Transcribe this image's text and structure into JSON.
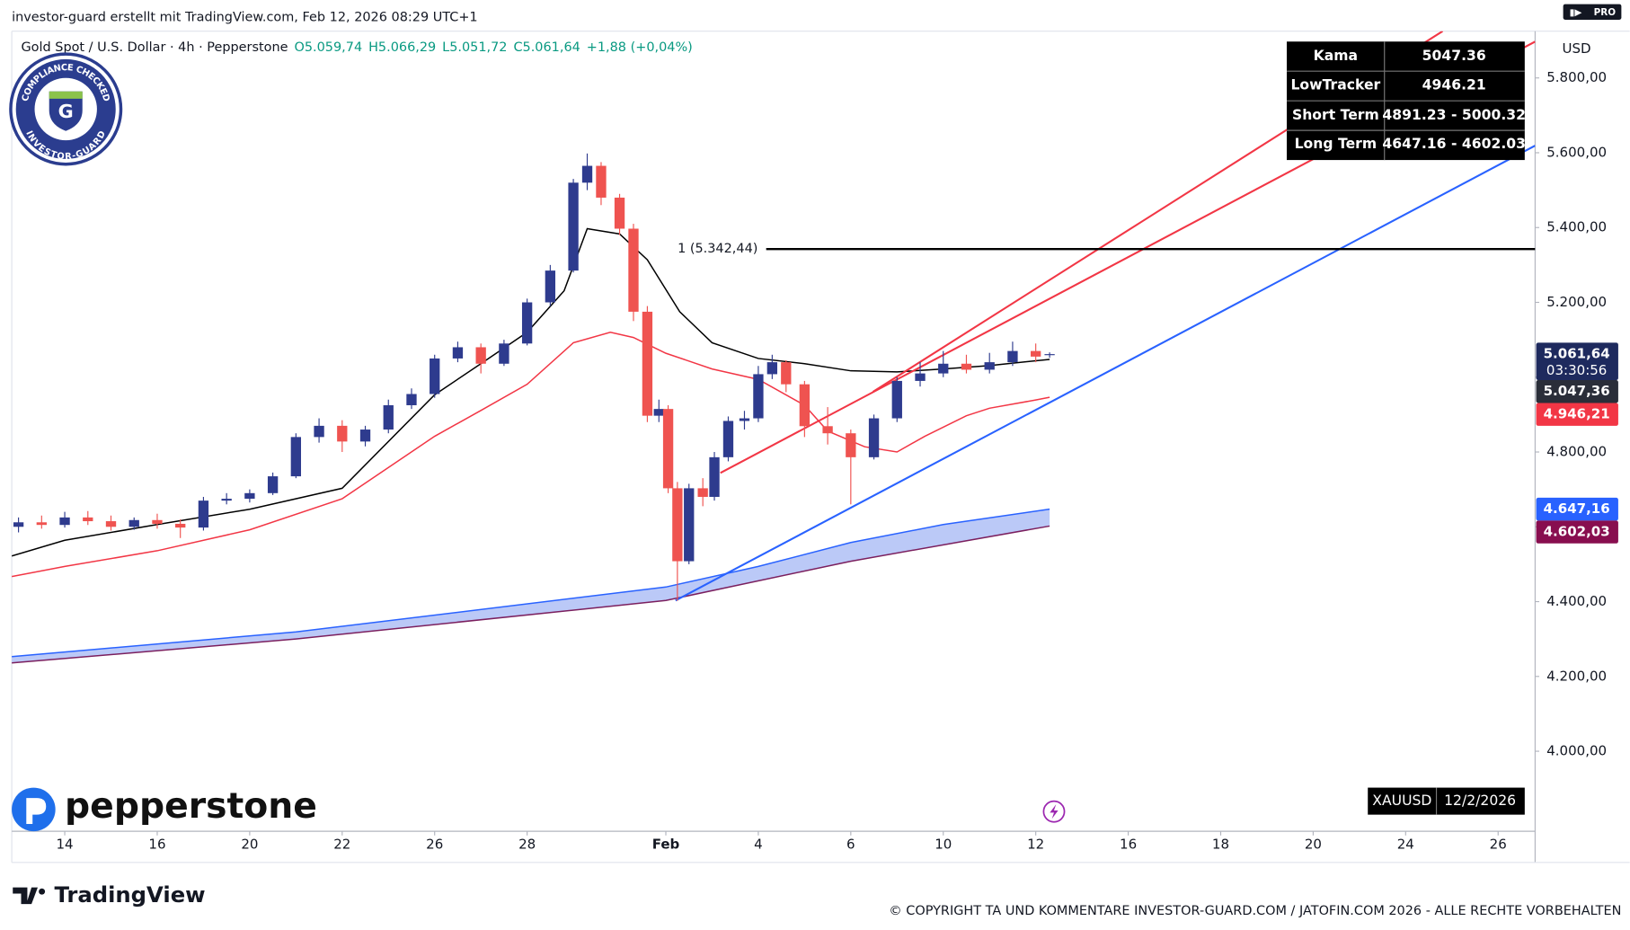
{
  "header": {
    "attribution": "investor-guard erstellt mit TradingView.com, Feb 12, 2026 08:29 UTC+1",
    "tv_badge": "PRO",
    "symbol": "Gold Spot / U.S. Dollar · 4h · Pepperstone",
    "ohlc": [
      "O5.059,74",
      "H5.066,29",
      "L5.051,72",
      "C5.061,64",
      "+1,88 (+0,04%)"
    ],
    "currency": "USD"
  },
  "badge": {
    "top": "COMPLIANCE CHECKED",
    "bottom": "INVESTOR-GUARD",
    "letter": "G"
  },
  "info_table": {
    "rows": [
      [
        "Kama",
        "5047.36"
      ],
      [
        "LowTracker",
        "4946.21"
      ],
      [
        "Short Term",
        "4891.23 - 5000.32"
      ],
      [
        "Long Term",
        "4647.16 - 4602.03"
      ]
    ]
  },
  "chart_data": {
    "type": "candlestick",
    "up_color": "#2e3b8e",
    "down_color": "#ef5350",
    "xlim": [
      -1.146,
      31.8
    ],
    "ylim": [
      3786,
      5925
    ],
    "grid": false,
    "xticks": [
      {
        "value": 0,
        "label": "14"
      },
      {
        "value": 2,
        "label": "16"
      },
      {
        "value": 4,
        "label": "20"
      },
      {
        "value": 6,
        "label": "22"
      },
      {
        "value": 8,
        "label": "26"
      },
      {
        "value": 10,
        "label": "28"
      },
      {
        "value": 13,
        "label": "Feb"
      },
      {
        "value": 15,
        "label": "4"
      },
      {
        "value": 17,
        "label": "6"
      },
      {
        "value": 19,
        "label": "10"
      },
      {
        "value": 21,
        "label": "12"
      },
      {
        "value": 23,
        "label": "16"
      },
      {
        "value": 25,
        "label": "18"
      },
      {
        "value": 27,
        "label": "20"
      },
      {
        "value": 29,
        "label": "24"
      },
      {
        "value": 31,
        "label": "26"
      }
    ],
    "yticks": [
      {
        "value": 4000,
        "label": "4.000,00"
      },
      {
        "value": 4200,
        "label": "4.200,00"
      },
      {
        "value": 4400,
        "label": "4.400,00"
      },
      {
        "value": 4600,
        "label": "4.600,00"
      },
      {
        "value": 4800,
        "label": "4.800,00"
      },
      {
        "value": 5000,
        "label": "5.000,00"
      },
      {
        "value": 5200,
        "label": "5.200,00"
      },
      {
        "value": 5400,
        "label": "5.400,00"
      },
      {
        "value": 5600,
        "label": "5.600,00"
      },
      {
        "value": 5800,
        "label": "5.800,00"
      }
    ],
    "candles": [
      {
        "x": -1,
        "open": 4600,
        "high": 4625,
        "low": 4585,
        "close": 4612
      },
      {
        "x": -0.5,
        "open": 4612,
        "high": 4630,
        "low": 4595,
        "close": 4605
      },
      {
        "x": 0,
        "open": 4605,
        "high": 4640,
        "low": 4598,
        "close": 4625
      },
      {
        "x": 0.5,
        "open": 4625,
        "high": 4642,
        "low": 4605,
        "close": 4615
      },
      {
        "x": 1,
        "open": 4615,
        "high": 4630,
        "low": 4590,
        "close": 4600
      },
      {
        "x": 1.5,
        "open": 4600,
        "high": 4625,
        "low": 4592,
        "close": 4618
      },
      {
        "x": 2,
        "open": 4618,
        "high": 4635,
        "low": 4595,
        "close": 4608
      },
      {
        "x": 2.5,
        "open": 4608,
        "high": 4620,
        "low": 4570,
        "close": 4598
      },
      {
        "x": 3,
        "open": 4598,
        "high": 4680,
        "low": 4590,
        "close": 4670
      },
      {
        "x": 3.5,
        "open": 4670,
        "high": 4690,
        "low": 4660,
        "close": 4675
      },
      {
        "x": 4,
        "open": 4675,
        "high": 4700,
        "low": 4665,
        "close": 4690
      },
      {
        "x": 4.5,
        "open": 4690,
        "high": 4745,
        "low": 4685,
        "close": 4735
      },
      {
        "x": 5,
        "open": 4735,
        "high": 4850,
        "low": 4730,
        "close": 4840
      },
      {
        "x": 5.5,
        "open": 4840,
        "high": 4890,
        "low": 4825,
        "close": 4870
      },
      {
        "x": 6,
        "open": 4870,
        "high": 4885,
        "low": 4800,
        "close": 4828
      },
      {
        "x": 6.5,
        "open": 4828,
        "high": 4870,
        "low": 4815,
        "close": 4860
      },
      {
        "x": 7,
        "open": 4860,
        "high": 4940,
        "low": 4850,
        "close": 4925
      },
      {
        "x": 7.5,
        "open": 4925,
        "high": 4970,
        "low": 4915,
        "close": 4955
      },
      {
        "x": 8,
        "open": 4955,
        "high": 5060,
        "low": 4945,
        "close": 5050
      },
      {
        "x": 8.5,
        "open": 5050,
        "high": 5095,
        "low": 5040,
        "close": 5080
      },
      {
        "x": 9,
        "open": 5080,
        "high": 5090,
        "low": 5010,
        "close": 5036
      },
      {
        "x": 9.5,
        "open": 5036,
        "high": 5100,
        "low": 5030,
        "close": 5090
      },
      {
        "x": 10,
        "open": 5090,
        "high": 5210,
        "low": 5085,
        "close": 5200
      },
      {
        "x": 10.5,
        "open": 5200,
        "high": 5300,
        "low": 5190,
        "close": 5285
      },
      {
        "x": 11,
        "open": 5285,
        "high": 5530,
        "low": 5280,
        "close": 5520
      },
      {
        "x": 11.3,
        "open": 5520,
        "high": 5598,
        "low": 5500,
        "close": 5565
      },
      {
        "x": 11.6,
        "open": 5565,
        "high": 5575,
        "low": 5460,
        "close": 5480
      },
      {
        "x": 12,
        "open": 5480,
        "high": 5490,
        "low": 5380,
        "close": 5397
      },
      {
        "x": 12.3,
        "open": 5397,
        "high": 5410,
        "low": 5150,
        "close": 5175
      },
      {
        "x": 12.6,
        "open": 5175,
        "high": 5190,
        "low": 4880,
        "close": 4897
      },
      {
        "x": 12.85,
        "open": 4897,
        "high": 4940,
        "low": 4880,
        "close": 4915
      },
      {
        "x": 13.05,
        "open": 4915,
        "high": 4925,
        "low": 4690,
        "close": 4703
      },
      {
        "x": 13.25,
        "open": 4703,
        "high": 4720,
        "low": 4402,
        "close": 4508
      },
      {
        "x": 13.5,
        "open": 4508,
        "high": 4715,
        "low": 4500,
        "close": 4703
      },
      {
        "x": 13.8,
        "open": 4703,
        "high": 4730,
        "low": 4655,
        "close": 4680
      },
      {
        "x": 14.05,
        "open": 4680,
        "high": 4800,
        "low": 4670,
        "close": 4786
      },
      {
        "x": 14.35,
        "open": 4786,
        "high": 4895,
        "low": 4775,
        "close": 4883
      },
      {
        "x": 14.7,
        "open": 4883,
        "high": 4910,
        "low": 4860,
        "close": 4890
      },
      {
        "x": 15,
        "open": 4890,
        "high": 5030,
        "low": 4880,
        "close": 5008
      },
      {
        "x": 15.3,
        "open": 5008,
        "high": 5060,
        "low": 4995,
        "close": 5040
      },
      {
        "x": 15.6,
        "open": 5040,
        "high": 5045,
        "low": 4960,
        "close": 4981
      },
      {
        "x": 16,
        "open": 4981,
        "high": 4990,
        "low": 4840,
        "close": 4869
      },
      {
        "x": 16.5,
        "open": 4869,
        "high": 4920,
        "low": 4820,
        "close": 4850
      },
      {
        "x": 17,
        "open": 4850,
        "high": 4860,
        "low": 4660,
        "close": 4786
      },
      {
        "x": 17.5,
        "open": 4786,
        "high": 4900,
        "low": 4780,
        "close": 4890
      },
      {
        "x": 18,
        "open": 4890,
        "high": 5000,
        "low": 4880,
        "close": 4990
      },
      {
        "x": 18.5,
        "open": 4990,
        "high": 5040,
        "low": 4975,
        "close": 5010
      },
      {
        "x": 19,
        "open": 5010,
        "high": 5070,
        "low": 5000,
        "close": 5036
      },
      {
        "x": 19.5,
        "open": 5036,
        "high": 5060,
        "low": 5010,
        "close": 5020
      },
      {
        "x": 20,
        "open": 5020,
        "high": 5065,
        "low": 5010,
        "close": 5040
      },
      {
        "x": 20.5,
        "open": 5040,
        "high": 5095,
        "low": 5030,
        "close": 5070
      },
      {
        "x": 21,
        "open": 5070,
        "high": 5090,
        "low": 5040,
        "close": 5055
      },
      {
        "x": 21.3,
        "open": 5059.74,
        "high": 5066.29,
        "low": 5051.72,
        "close": 5061.64
      }
    ],
    "overlays": {
      "kama": {
        "color": "#000000",
        "x": [
          -1.146,
          0,
          2,
          4,
          6,
          8,
          9,
          10,
          10.8,
          11.3,
          12,
          12.6,
          13.3,
          14,
          15,
          16,
          17,
          18,
          19,
          20,
          21,
          21.3
        ],
        "values": [
          4522,
          4564,
          4606,
          4647,
          4703,
          4953,
          5036,
          5120,
          5231,
          5397,
          5383,
          5314,
          5175,
          5092,
          5050,
          5036,
          5017,
          5014,
          5022,
          5031,
          5044,
          5047.36
        ]
      },
      "low_tracker": {
        "color": "#f23645",
        "x": [
          -1.146,
          0,
          2,
          4,
          6,
          8,
          9,
          10,
          11,
          11.8,
          12.3,
          13,
          14,
          15,
          16,
          16.5,
          17.3,
          18,
          18.6,
          19.5,
          20,
          21,
          21.3
        ],
        "values": [
          4467,
          4494,
          4536,
          4592,
          4675,
          4842,
          4911,
          4981,
          5092,
          5120,
          5106,
          5064,
          5022,
          4994,
          4925,
          4856,
          4814,
          4800,
          4842,
          4897,
          4917,
          4939,
          4946.21
        ]
      },
      "long_term_upper": {
        "color": "#2962ff",
        "x": [
          -1.146,
          5,
          13,
          15,
          17,
          19,
          21.3
        ],
        "values": [
          4253,
          4319,
          4439,
          4494,
          4558,
          4606,
          4647.16
        ]
      },
      "long_term_lower": {
        "color": "#7b1f5e",
        "x": [
          -1.146,
          5,
          13,
          17,
          21.3
        ],
        "values": [
          4236,
          4300,
          4403,
          4508,
          4602.03
        ]
      },
      "band_fill": "#aabcf5"
    },
    "trendlines": [
      {
        "color": "#2962ff",
        "x": [
          13.21,
          31.8
        ],
        "values": [
          4403,
          5619
        ]
      },
      {
        "color": "#f23645",
        "x": [
          14.18,
          31.8
        ],
        "values": [
          4744,
          5897
        ]
      },
      {
        "color": "#f23645",
        "x": [
          17.48,
          29.8
        ],
        "values": [
          4961,
          5925
        ]
      }
    ],
    "hline": {
      "value": 5342.44,
      "label": "1 (5.342,44)",
      "x_start": 15.17,
      "color": "#000000"
    },
    "price_labels": [
      {
        "value": 5061.64,
        "label": "5.061,64",
        "sub": "03:30:56",
        "color": "#1e2a5e"
      },
      {
        "value": 5047.36,
        "label": "5.047,36",
        "color": "#2a2e39"
      },
      {
        "value": 4946.21,
        "label": "4.946,21",
        "color": "#f23645"
      },
      {
        "value": 4647.16,
        "label": "4.647,16",
        "color": "#2962ff"
      },
      {
        "value": 4602.03,
        "label": "4.602,03",
        "color": "#880e4f"
      }
    ]
  },
  "footer": {
    "symbol": "XAUUSD",
    "date": "12/2/2026",
    "broker_logo": "pepperstone",
    "platform_logo": "TradingView",
    "copyright": "© COPYRIGHT TA UND KOMMENTARE INVESTOR-GUARD.COM / JATOFIN.COM 2026 - ALLE RECHTE VORBEHALTEN"
  }
}
